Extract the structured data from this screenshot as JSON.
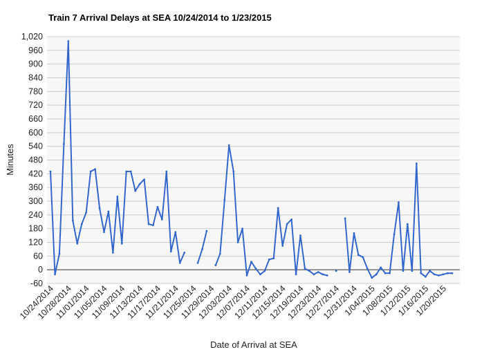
{
  "chart_data": {
    "type": "line",
    "title": "Train 7 Arrival Delays at SEA 10/24/2014 to 1/23/2015",
    "xlabel": "Date of Arrival at SEA",
    "ylabel": "Minutes",
    "ylim": [
      -60,
      1020
    ],
    "y_ticks": [
      -60,
      0,
      60,
      120,
      180,
      240,
      300,
      360,
      420,
      480,
      540,
      600,
      660,
      720,
      780,
      840,
      900,
      960,
      1020
    ],
    "y_tick_labels": [
      "-60",
      "0",
      "60",
      "120",
      "180",
      "240",
      "300",
      "360",
      "420",
      "480",
      "540",
      "600",
      "660",
      "720",
      "780",
      "840",
      "900",
      "960",
      "1,020"
    ],
    "x_tick_labels": [
      "10/24/2014",
      "10/28/2014",
      "11/01/2014",
      "11/05/2014",
      "11/09/2014",
      "11/13/2014",
      "11/17/2014",
      "11/21/2014",
      "11/25/2014",
      "11/29/2014",
      "12/03/2014",
      "12/07/2014",
      "12/11/2014",
      "12/15/2014",
      "12/19/2014",
      "12/23/2014",
      "12/27/2014",
      "12/31/2014",
      "1/04/2015",
      "1/08/2015",
      "1/12/2015",
      "1/16/2015",
      "1/20/2015"
    ],
    "grid": true,
    "legend": "none",
    "colors": {
      "line": "#3366cc",
      "grid": "#cccccc",
      "plot_bg": "#f7f7f7",
      "zero_line": "#333333"
    },
    "series": [
      {
        "values": [
          430,
          -20,
          70,
          550,
          1000,
          215,
          115,
          200,
          250,
          430,
          440,
          270,
          165,
          255,
          75,
          320,
          115,
          430,
          430,
          345,
          375,
          395,
          200,
          195,
          275,
          220,
          430,
          80,
          165,
          30,
          75,
          null,
          null,
          30,
          90,
          170,
          null,
          20,
          70,
          305,
          545,
          430,
          120,
          180,
          -25,
          35,
          5,
          -20,
          -5,
          45,
          50,
          270,
          105,
          200,
          220,
          -20,
          150,
          5,
          -5,
          -20,
          -10,
          -20,
          -25,
          null,
          -5,
          null,
          225,
          -10,
          160,
          65,
          55,
          5,
          -35,
          -20,
          10,
          -15,
          -15,
          155,
          295,
          -5,
          200,
          -5,
          465,
          -15,
          -30,
          -5,
          -20,
          -25,
          -20,
          -15,
          -15
        ]
      }
    ]
  }
}
